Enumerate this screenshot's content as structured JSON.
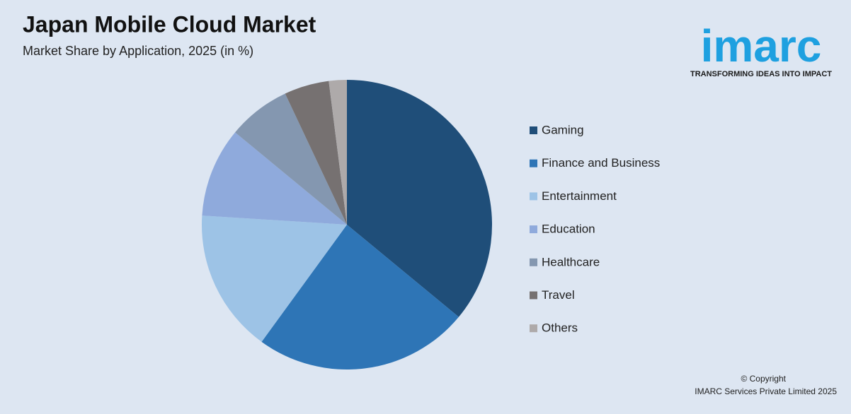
{
  "chart_data": {
    "type": "pie",
    "title": "Japan Mobile Cloud Market",
    "subtitle": "Market Share by Application, 2025 (in %)",
    "categories": [
      "Gaming",
      "Finance and Business",
      "Entertainment",
      "Education",
      "Healthcare",
      "Travel",
      "Others"
    ],
    "values": [
      36,
      24,
      16,
      10,
      7,
      5,
      2
    ],
    "colors": [
      "#1f4e79",
      "#2e75b6",
      "#9dc3e6",
      "#8faadc",
      "#8497b0",
      "#767171",
      "#aeaaaa"
    ],
    "legend": "right"
  },
  "logo": {
    "name": "imarc",
    "tagline": "TRANSFORMING IDEAS INTO IMPACT"
  },
  "copyright": [
    "© Copyright",
    "IMARC Services Private Limited 2025"
  ]
}
